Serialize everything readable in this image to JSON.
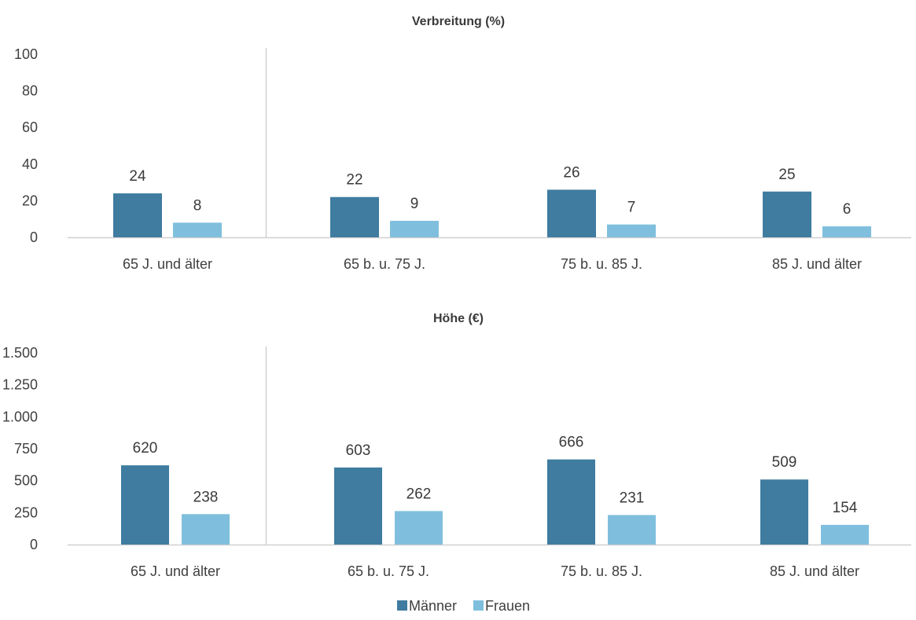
{
  "chart_data": [
    {
      "type": "bar",
      "title": "Verbreitung (%)",
      "categories": [
        "65 J. und älter",
        "65 b. u. 75 J.",
        "75 b. u. 85 J.",
        "85 J. und älter"
      ],
      "series": [
        {
          "name": "Männer",
          "values": [
            24,
            22,
            26,
            25
          ],
          "color": "#3f7ca0"
        },
        {
          "name": "Frauen",
          "values": [
            8,
            9,
            7,
            6
          ],
          "color": "#7fbfdd"
        }
      ],
      "ylim": [
        0,
        100
      ],
      "yticks": [
        0,
        20,
        40,
        60,
        80,
        100
      ],
      "ytick_labels": [
        "0",
        "20",
        "40",
        "60",
        "80",
        "100"
      ],
      "data_labels": [
        [
          "24",
          "22",
          "26",
          "25"
        ],
        [
          "8",
          "9",
          "7",
          "6"
        ]
      ],
      "grid": false
    },
    {
      "type": "bar",
      "title": "Höhe (€)",
      "categories": [
        "65 J. und älter",
        "65 b. u. 75 J.",
        "75 b. u. 85 J.",
        "85 J. und älter"
      ],
      "series": [
        {
          "name": "Männer",
          "values": [
            620,
            603,
            666,
            509
          ],
          "color": "#3f7ca0"
        },
        {
          "name": "Frauen",
          "values": [
            238,
            262,
            231,
            154
          ],
          "color": "#7fbfdd"
        }
      ],
      "ylim": [
        0,
        1500
      ],
      "yticks": [
        0,
        250,
        500,
        750,
        1000,
        1250,
        1500
      ],
      "ytick_labels": [
        "0",
        "250",
        "500",
        "750",
        "1.000",
        "1.250",
        "1.500"
      ],
      "data_labels": [
        [
          "620",
          "603",
          "666",
          "509"
        ],
        [
          "238",
          "262",
          "231",
          "154"
        ]
      ],
      "grid": false
    }
  ],
  "legend": {
    "placement": "bottom",
    "items": [
      {
        "name": "Männer",
        "color": "#3f7ca0"
      },
      {
        "name": "Frauen",
        "color": "#7fbfdd"
      }
    ]
  }
}
